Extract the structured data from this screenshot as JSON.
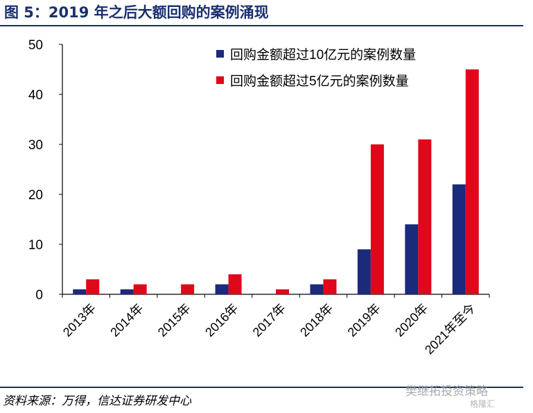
{
  "header": {
    "title": "图 5：2019 年之后大额回购的案例涌现"
  },
  "footer": {
    "source": "资料来源：万得，信达证券研发中心"
  },
  "watermark": {
    "text": "樊继拓投资策略",
    "sub": "格隆汇"
  },
  "colors": {
    "series1": "#1b2a7b",
    "series2": "#e0071b",
    "rule": "#1a2f6e"
  },
  "chart_data": {
    "type": "bar",
    "categories": [
      "2013年",
      "2014年",
      "2015年",
      "2016年",
      "2017年",
      "2018年",
      "2019年",
      "2020年",
      "2021年至今"
    ],
    "series": [
      {
        "name": "回购金额超过10亿元的案例数量",
        "values": [
          1,
          1,
          0,
          2,
          0,
          2,
          9,
          14,
          22
        ]
      },
      {
        "name": "回购金额超过5亿元的案例数量",
        "values": [
          3,
          2,
          2,
          4,
          1,
          3,
          30,
          31,
          45
        ]
      }
    ],
    "yticks": [
      0,
      10,
      20,
      30,
      40,
      50
    ],
    "ylim": [
      0,
      50
    ],
    "legend_position": "top",
    "grid": false
  }
}
